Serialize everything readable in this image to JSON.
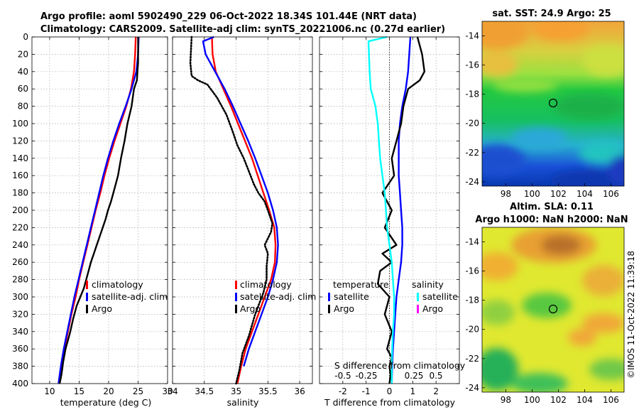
{
  "header": {
    "line1": "Argo profile: aoml 5902490_229 06-Oct-2022 18.34S 101.44E (NRT data)",
    "line2": "Climatology: CARS2009. Satellite-adj clim: synTS_20221006.nc (0.27d earlier)"
  },
  "watermark": "©IMOS 11-Oct-2022 11:39:18",
  "colors": {
    "climatology": "#ff0000",
    "satellite": "#0000ff",
    "argo": "#000000",
    "sal_satellite": "#00ffff",
    "sal_argo": "#ff00ff"
  },
  "chart_data": [
    {
      "type": "line",
      "name": "temperature-profile",
      "xlabel": "temperature (deg C)",
      "ylabel": "",
      "xlim": [
        7,
        30
      ],
      "ylim": [
        0,
        400
      ],
      "y_reversed": true,
      "xticks": [
        10,
        15,
        20,
        25,
        30
      ],
      "yticks": [
        0,
        20,
        40,
        60,
        80,
        100,
        120,
        140,
        160,
        180,
        200,
        220,
        240,
        260,
        280,
        300,
        320,
        340,
        360,
        380,
        400
      ],
      "legend": [
        "climatology",
        "satellite-adj. clim",
        "Argo"
      ],
      "series": [
        {
          "name": "climatology",
          "color": "#ff0000",
          "x": [
            24.6,
            24.5,
            24.3,
            23.8,
            23.0,
            22.0,
            21.0,
            20.1,
            19.3,
            18.6,
            17.8,
            17.1,
            16.4,
            15.7,
            15.0,
            14.4,
            13.7,
            13.1,
            12.5,
            12.0,
            11.6
          ],
          "y": [
            0,
            20,
            40,
            60,
            80,
            100,
            120,
            140,
            160,
            180,
            200,
            220,
            240,
            260,
            280,
            300,
            320,
            340,
            360,
            380,
            400
          ]
        },
        {
          "name": "satellite-adj. clim",
          "color": "#0000ff",
          "x": [
            25.1,
            25.0,
            24.7,
            23.9,
            22.9,
            21.8,
            20.8,
            19.9,
            19.1,
            18.4,
            17.7,
            17.0,
            16.3,
            15.6,
            14.9,
            14.2,
            13.6,
            13.0,
            12.4,
            11.9,
            11.5
          ],
          "y": [
            0,
            20,
            40,
            60,
            80,
            100,
            120,
            140,
            160,
            180,
            200,
            220,
            240,
            260,
            280,
            300,
            320,
            340,
            360,
            380,
            400
          ]
        },
        {
          "name": "Argo",
          "color": "#000000",
          "x": [
            25.0,
            25.0,
            25.0,
            24.9,
            24.8,
            24.3,
            23.9,
            23.2,
            22.7,
            22.1,
            21.6,
            21.0,
            20.4,
            19.9,
            19.5,
            19.0,
            18.5,
            18.0,
            17.5,
            17.0,
            16.4,
            15.8,
            15.2,
            14.6,
            14.0,
            13.5,
            13.1,
            12.7,
            12.3,
            12.0,
            11.7
          ],
          "y": [
            0,
            10,
            30,
            40,
            50,
            60,
            80,
            100,
            120,
            140,
            160,
            175,
            190,
            200,
            210,
            220,
            230,
            240,
            250,
            260,
            275,
            290,
            300,
            310,
            325,
            340,
            350,
            360,
            375,
            390,
            400
          ]
        }
      ]
    },
    {
      "type": "line",
      "name": "salinity-profile",
      "xlabel": "salinity",
      "xlim": [
        34,
        36.2
      ],
      "ylim": [
        0,
        400
      ],
      "y_reversed": true,
      "xticks": [
        34,
        34.5,
        35,
        35.5,
        36
      ],
      "legend": [
        "climatology",
        "satellite-adj. clim",
        "Argo"
      ],
      "series": [
        {
          "name": "climatology",
          "color": "#ff0000",
          "x": [
            34.62,
            34.63,
            34.68,
            34.8,
            34.92,
            35.03,
            35.14,
            35.25,
            35.34,
            35.43,
            35.52,
            35.6,
            35.62,
            35.61,
            35.55,
            35.45,
            35.35,
            35.25,
            35.15,
            35.08,
            35.02
          ],
          "y": [
            0,
            20,
            40,
            60,
            80,
            100,
            120,
            140,
            160,
            180,
            200,
            220,
            240,
            260,
            280,
            300,
            320,
            340,
            360,
            380,
            400
          ]
        },
        {
          "name": "satellite-adj. clim",
          "color": "#0000ff",
          "x": [
            34.65,
            34.48,
            34.52,
            34.67,
            34.82,
            34.95,
            35.07,
            35.19,
            35.3,
            35.4,
            35.5,
            35.58,
            35.64,
            35.66,
            35.64,
            35.58,
            35.5,
            35.4,
            35.3,
            35.2,
            35.12
          ],
          "y": [
            0,
            5,
            20,
            40,
            60,
            80,
            100,
            120,
            140,
            160,
            180,
            200,
            220,
            240,
            260,
            280,
            300,
            320,
            340,
            360,
            380
          ]
        },
        {
          "name": "Argo",
          "color": "#000000",
          "dash": "dotted",
          "x": [
            34.3,
            34.28,
            34.3,
            34.4,
            34.55,
            34.7,
            34.85,
            34.95,
            35.02,
            35.12,
            35.2,
            35.28,
            35.35,
            35.45,
            35.5,
            35.57,
            35.55,
            35.45,
            35.5,
            35.48,
            35.48,
            35.43,
            35.3,
            35.2,
            35.1,
            35.05,
            35.0
          ],
          "y": [
            0,
            30,
            45,
            50,
            55,
            70,
            90,
            110,
            125,
            140,
            155,
            170,
            180,
            190,
            200,
            215,
            225,
            240,
            250,
            265,
            280,
            295,
            320,
            345,
            365,
            385,
            400
          ]
        }
      ]
    },
    {
      "type": "line",
      "name": "difference-profile",
      "xlabel": "T difference from climatology",
      "xlabel_top": "S difference from climatology",
      "xlim": [
        -3,
        3
      ],
      "ylim": [
        0,
        400
      ],
      "y_reversed": true,
      "xticks": [
        -2,
        -1,
        0,
        1,
        2
      ],
      "xticks_top_labels": [
        "-0.5",
        "-0.25",
        "0.25",
        "0.5"
      ],
      "legend_temperature": {
        "heading": "temperature",
        "items": [
          "satellite",
          "Argo"
        ]
      },
      "legend_salinity": {
        "heading": "salinity",
        "items": [
          "satellite",
          "Argo"
        ]
      },
      "series": [
        {
          "name": "T satellite",
          "color": "#0000ff",
          "x": [
            0.9,
            0.85,
            0.8,
            0.7,
            0.55,
            0.45,
            0.4,
            0.4,
            0.4,
            0.45,
            0.5,
            0.55,
            0.55,
            0.5,
            0.4,
            0.3,
            0.25,
            0.2,
            0.15,
            0.12,
            0.1
          ],
          "y": [
            0,
            20,
            40,
            60,
            80,
            100,
            120,
            140,
            160,
            180,
            200,
            220,
            240,
            260,
            280,
            300,
            320,
            340,
            360,
            380,
            400
          ]
        },
        {
          "name": "T Argo",
          "color": "#000000",
          "x": [
            1.2,
            1.3,
            1.4,
            1.5,
            1.3,
            0.8,
            0.6,
            0.5,
            0.3,
            0.1,
            0.2,
            -0.3,
            0.1,
            -0.2,
            0.3,
            -0.3,
            0.1,
            -0.4,
            -0.5,
            0.0,
            -0.2,
            0.1,
            -0.1,
            0.1,
            0.0,
            0.05,
            0.0
          ],
          "y": [
            0,
            10,
            20,
            40,
            50,
            60,
            80,
            100,
            120,
            140,
            160,
            180,
            200,
            220,
            240,
            250,
            260,
            270,
            285,
            300,
            320,
            340,
            360,
            370,
            380,
            390,
            400
          ]
        },
        {
          "name": "S satellite",
          "color": "#00ffff",
          "x": [
            -0.1,
            -0.9,
            -0.85,
            -0.8,
            -0.6,
            -0.5,
            -0.45,
            -0.4,
            -0.3,
            -0.2,
            -0.15,
            -0.1,
            0.0,
            0.1,
            0.15,
            0.2,
            0.2,
            0.15,
            0.12,
            0.1,
            0.1
          ],
          "y": [
            0,
            5,
            40,
            60,
            80,
            100,
            120,
            140,
            160,
            180,
            200,
            220,
            240,
            260,
            280,
            300,
            320,
            340,
            360,
            380,
            400
          ]
        }
      ]
    },
    {
      "type": "heatmap",
      "name": "sst-map",
      "title": "sat. SST: 24.9 Argo: 25",
      "xticks": [
        98,
        100,
        102,
        104,
        106
      ],
      "yticks": [
        -14,
        -16,
        -18,
        -20,
        -22,
        -24
      ],
      "marker": {
        "lon": 101.44,
        "lat": -18.34
      }
    },
    {
      "type": "heatmap",
      "name": "sla-map",
      "title_line1": "Altim. SLA: 0.11",
      "title_line2": "Argo h1000: NaN h2000: NaN",
      "xticks": [
        98,
        100,
        102,
        104,
        106
      ],
      "yticks": [
        -14,
        -16,
        -18,
        -20,
        -22,
        -24
      ],
      "marker": {
        "lon": 101.44,
        "lat": -18.34
      }
    }
  ]
}
